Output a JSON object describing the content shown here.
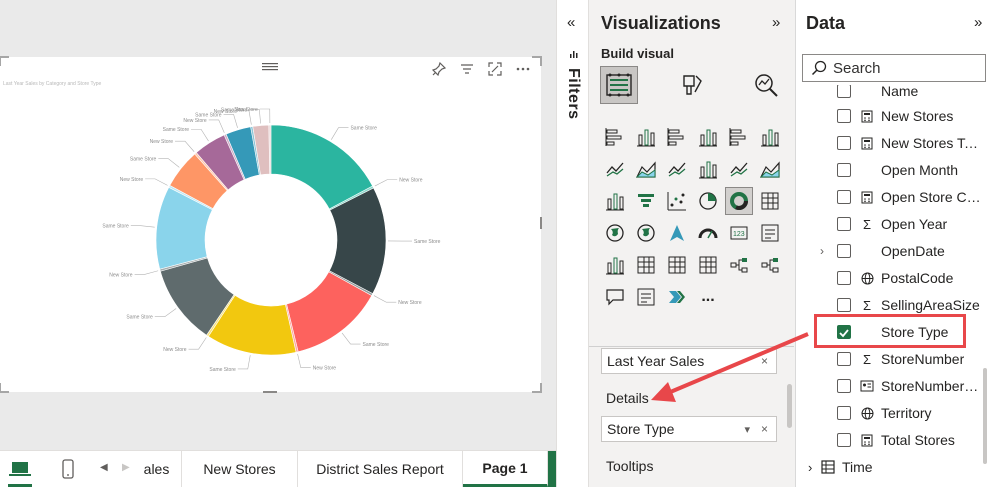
{
  "visual": {
    "title": "Last Year Sales by Category and Store Type",
    "toolbar_icons": [
      "pin-icon",
      "filter-icon",
      "focus-mode-icon",
      "more-options-icon"
    ]
  },
  "chart_data": {
    "type": "donut",
    "title": "Last Year Sales by Category and Store Type",
    "legend": "none",
    "colors": [
      "#2bb5a0",
      "#374649",
      "#fd625e",
      "#f2c80f",
      "#5f6b6d",
      "#8ad4eb",
      "#fe9666",
      "#a66999",
      "#3599b8",
      "#dfbfbf"
    ],
    "slices": [
      {
        "label": "Same Store",
        "value": 17.0
      },
      {
        "label": "New Store",
        "value": 0.3
      },
      {
        "label": "Same Store",
        "value": 15.0
      },
      {
        "label": "New Store",
        "value": 0.3
      },
      {
        "label": "Same Store",
        "value": 13.0
      },
      {
        "label": "New Store",
        "value": 0.3
      },
      {
        "label": "Same Store",
        "value": 12.5
      },
      {
        "label": "New Store",
        "value": 0.3
      },
      {
        "label": "Same Store",
        "value": 11.0
      },
      {
        "label": "New Store",
        "value": 0.3
      },
      {
        "label": "Same Store",
        "value": 11.5
      },
      {
        "label": "New Store",
        "value": 0.3
      },
      {
        "label": "Same Store",
        "value": 5.5
      },
      {
        "label": "New Store",
        "value": 0.3
      },
      {
        "label": "Same Store",
        "value": 4.5
      },
      {
        "label": "New Store",
        "value": 0.3
      },
      {
        "label": "Same Store",
        "value": 3.5
      },
      {
        "label": "New Store",
        "value": 0.3
      },
      {
        "label": "Same Store",
        "value": 2.2
      },
      {
        "label": "New Store",
        "value": 0.3
      }
    ]
  },
  "bottom": {
    "tabs": [
      "ales",
      "New Stores",
      "District Sales Report",
      "Page 1"
    ],
    "active_tab": "Page 1",
    "add_label": "+"
  },
  "filters": {
    "label": "Filters",
    "collapse": "«"
  },
  "viz_pane": {
    "title": "Visualizations",
    "expand": "»",
    "build_visual": "Build visual",
    "more": "...",
    "values_chip": "Last Year Sales",
    "details_label": "Details",
    "details_chip": "Store Type",
    "tooltips_label": "Tooltips",
    "remove": "×",
    "chevron": "⌄"
  },
  "data_pane": {
    "title": "Data",
    "expand": "»",
    "search_placeholder": "Search",
    "fields": [
      {
        "name": "Name",
        "type": "none",
        "checked": false
      },
      {
        "name": "New Stores",
        "type": "calc",
        "checked": false
      },
      {
        "name": "New Stores Target",
        "type": "calc",
        "checked": false
      },
      {
        "name": "Open Month",
        "type": "none",
        "checked": false
      },
      {
        "name": "Open Store Count",
        "type": "calc",
        "checked": false
      },
      {
        "name": "Open Year",
        "type": "sum",
        "checked": false
      },
      {
        "name": "OpenDate",
        "type": "none",
        "checked": false,
        "expandable": true
      },
      {
        "name": "PostalCode",
        "type": "globe",
        "checked": false
      },
      {
        "name": "SellingAreaSize",
        "type": "sum",
        "checked": false
      },
      {
        "name": "Store Type",
        "type": "none",
        "checked": true
      },
      {
        "name": "StoreNumber",
        "type": "sum",
        "checked": false
      },
      {
        "name": "StoreNumberName",
        "type": "card",
        "checked": false
      },
      {
        "name": "Territory",
        "type": "globe",
        "checked": false
      },
      {
        "name": "Total Stores",
        "type": "calc",
        "checked": false
      }
    ],
    "table": {
      "name": "Time",
      "expander": "›"
    }
  }
}
